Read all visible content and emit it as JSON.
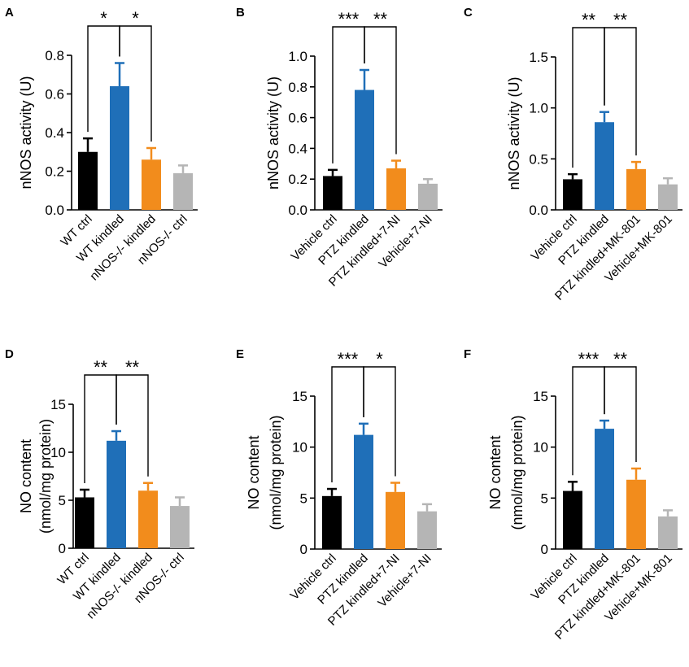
{
  "colors": {
    "black": "#000000",
    "blue": "#1f6fb8",
    "orange": "#f28c1c",
    "gray": "#b5b5b5"
  },
  "chart_data": [
    {
      "type": "bar",
      "panel": "A",
      "ylabel": [
        "nNOS activity (U)"
      ],
      "ylim": [
        0,
        0.8
      ],
      "yticks": [
        "0.0",
        "0.2",
        "0.4",
        "0.6",
        "0.8"
      ],
      "categories": [
        "WT ctrl",
        "WT kindled",
        "nNOS-/- kindled",
        "nNOS-/- ctrl"
      ],
      "values": [
        0.3,
        0.64,
        0.26,
        0.19
      ],
      "errors": [
        0.07,
        0.12,
        0.06,
        0.04
      ],
      "bar_colors": [
        "black",
        "blue",
        "orange",
        "gray"
      ],
      "significance": [
        {
          "from": 0,
          "to": 1,
          "label": "*"
        },
        {
          "from": 1,
          "to": 2,
          "label": "*"
        }
      ]
    },
    {
      "type": "bar",
      "panel": "B",
      "ylabel": [
        "nNOS activity (U)"
      ],
      "ylim": [
        0,
        1.0
      ],
      "yticks": [
        "0.0",
        "0.2",
        "0.4",
        "0.6",
        "0.8",
        "1.0"
      ],
      "categories": [
        "Vehicle ctrl",
        "PTZ kindled",
        "PTZ kindled+7-NI",
        "Vehicle+7-NI"
      ],
      "values": [
        0.22,
        0.78,
        0.27,
        0.17
      ],
      "errors": [
        0.04,
        0.13,
        0.05,
        0.03
      ],
      "bar_colors": [
        "black",
        "blue",
        "orange",
        "gray"
      ],
      "significance": [
        {
          "from": 0,
          "to": 1,
          "label": "***"
        },
        {
          "from": 1,
          "to": 2,
          "label": "**"
        }
      ]
    },
    {
      "type": "bar",
      "panel": "C",
      "ylabel": [
        "nNOS activity (U)"
      ],
      "ylim": [
        0,
        1.5
      ],
      "yticks": [
        "0.0",
        "0.5",
        "1.0",
        "1.5"
      ],
      "categories": [
        "Vehicle ctrl",
        "PTZ kindled",
        "PTZ kindled+MK-801",
        "Vehicle+MK-801"
      ],
      "values": [
        0.3,
        0.86,
        0.4,
        0.25
      ],
      "errors": [
        0.05,
        0.1,
        0.07,
        0.06
      ],
      "bar_colors": [
        "black",
        "blue",
        "orange",
        "gray"
      ],
      "significance": [
        {
          "from": 0,
          "to": 1,
          "label": "**"
        },
        {
          "from": 1,
          "to": 2,
          "label": "**"
        }
      ]
    },
    {
      "type": "bar",
      "panel": "D",
      "ylabel": [
        "NO content",
        "(nmol/mg protein)"
      ],
      "ylim": [
        0,
        15
      ],
      "yticks": [
        "0",
        "5",
        "10",
        "15"
      ],
      "categories": [
        "WT ctrl",
        "WT kindled",
        "nNOS-/- kindled",
        "nNOS-/- ctrl"
      ],
      "values": [
        5.3,
        11.2,
        6.0,
        4.4
      ],
      "errors": [
        0.8,
        1.0,
        0.8,
        0.9
      ],
      "bar_colors": [
        "black",
        "blue",
        "orange",
        "gray"
      ],
      "significance": [
        {
          "from": 0,
          "to": 1,
          "label": "**"
        },
        {
          "from": 1,
          "to": 2,
          "label": "**"
        }
      ]
    },
    {
      "type": "bar",
      "panel": "E",
      "ylabel": [
        "NO content",
        "(nmol/mg protein)"
      ],
      "ylim": [
        0,
        15
      ],
      "yticks": [
        "0",
        "5",
        "10",
        "15"
      ],
      "categories": [
        "Vehicle ctrl",
        "PTZ kindled",
        "PTZ kindled+7-NI",
        "Vehicle+7-NI"
      ],
      "values": [
        5.2,
        11.2,
        5.6,
        3.7
      ],
      "errors": [
        0.7,
        1.1,
        0.9,
        0.7
      ],
      "bar_colors": [
        "black",
        "blue",
        "orange",
        "gray"
      ],
      "significance": [
        {
          "from": 0,
          "to": 1,
          "label": "***"
        },
        {
          "from": 1,
          "to": 2,
          "label": "*"
        }
      ]
    },
    {
      "type": "bar",
      "panel": "F",
      "ylabel": [
        "NO content",
        "(nmol/mg protein)"
      ],
      "ylim": [
        0,
        15
      ],
      "yticks": [
        "0",
        "5",
        "10",
        "15"
      ],
      "categories": [
        "Vehicle ctrl",
        "PTZ kindled",
        "PTZ kindled+MK-801",
        "Vehicle+MK-801"
      ],
      "values": [
        5.7,
        11.8,
        6.8,
        3.2
      ],
      "errors": [
        0.9,
        0.8,
        1.1,
        0.6
      ],
      "bar_colors": [
        "black",
        "blue",
        "orange",
        "gray"
      ],
      "significance": [
        {
          "from": 0,
          "to": 1,
          "label": "***"
        },
        {
          "from": 1,
          "to": 2,
          "label": "**"
        }
      ]
    }
  ]
}
